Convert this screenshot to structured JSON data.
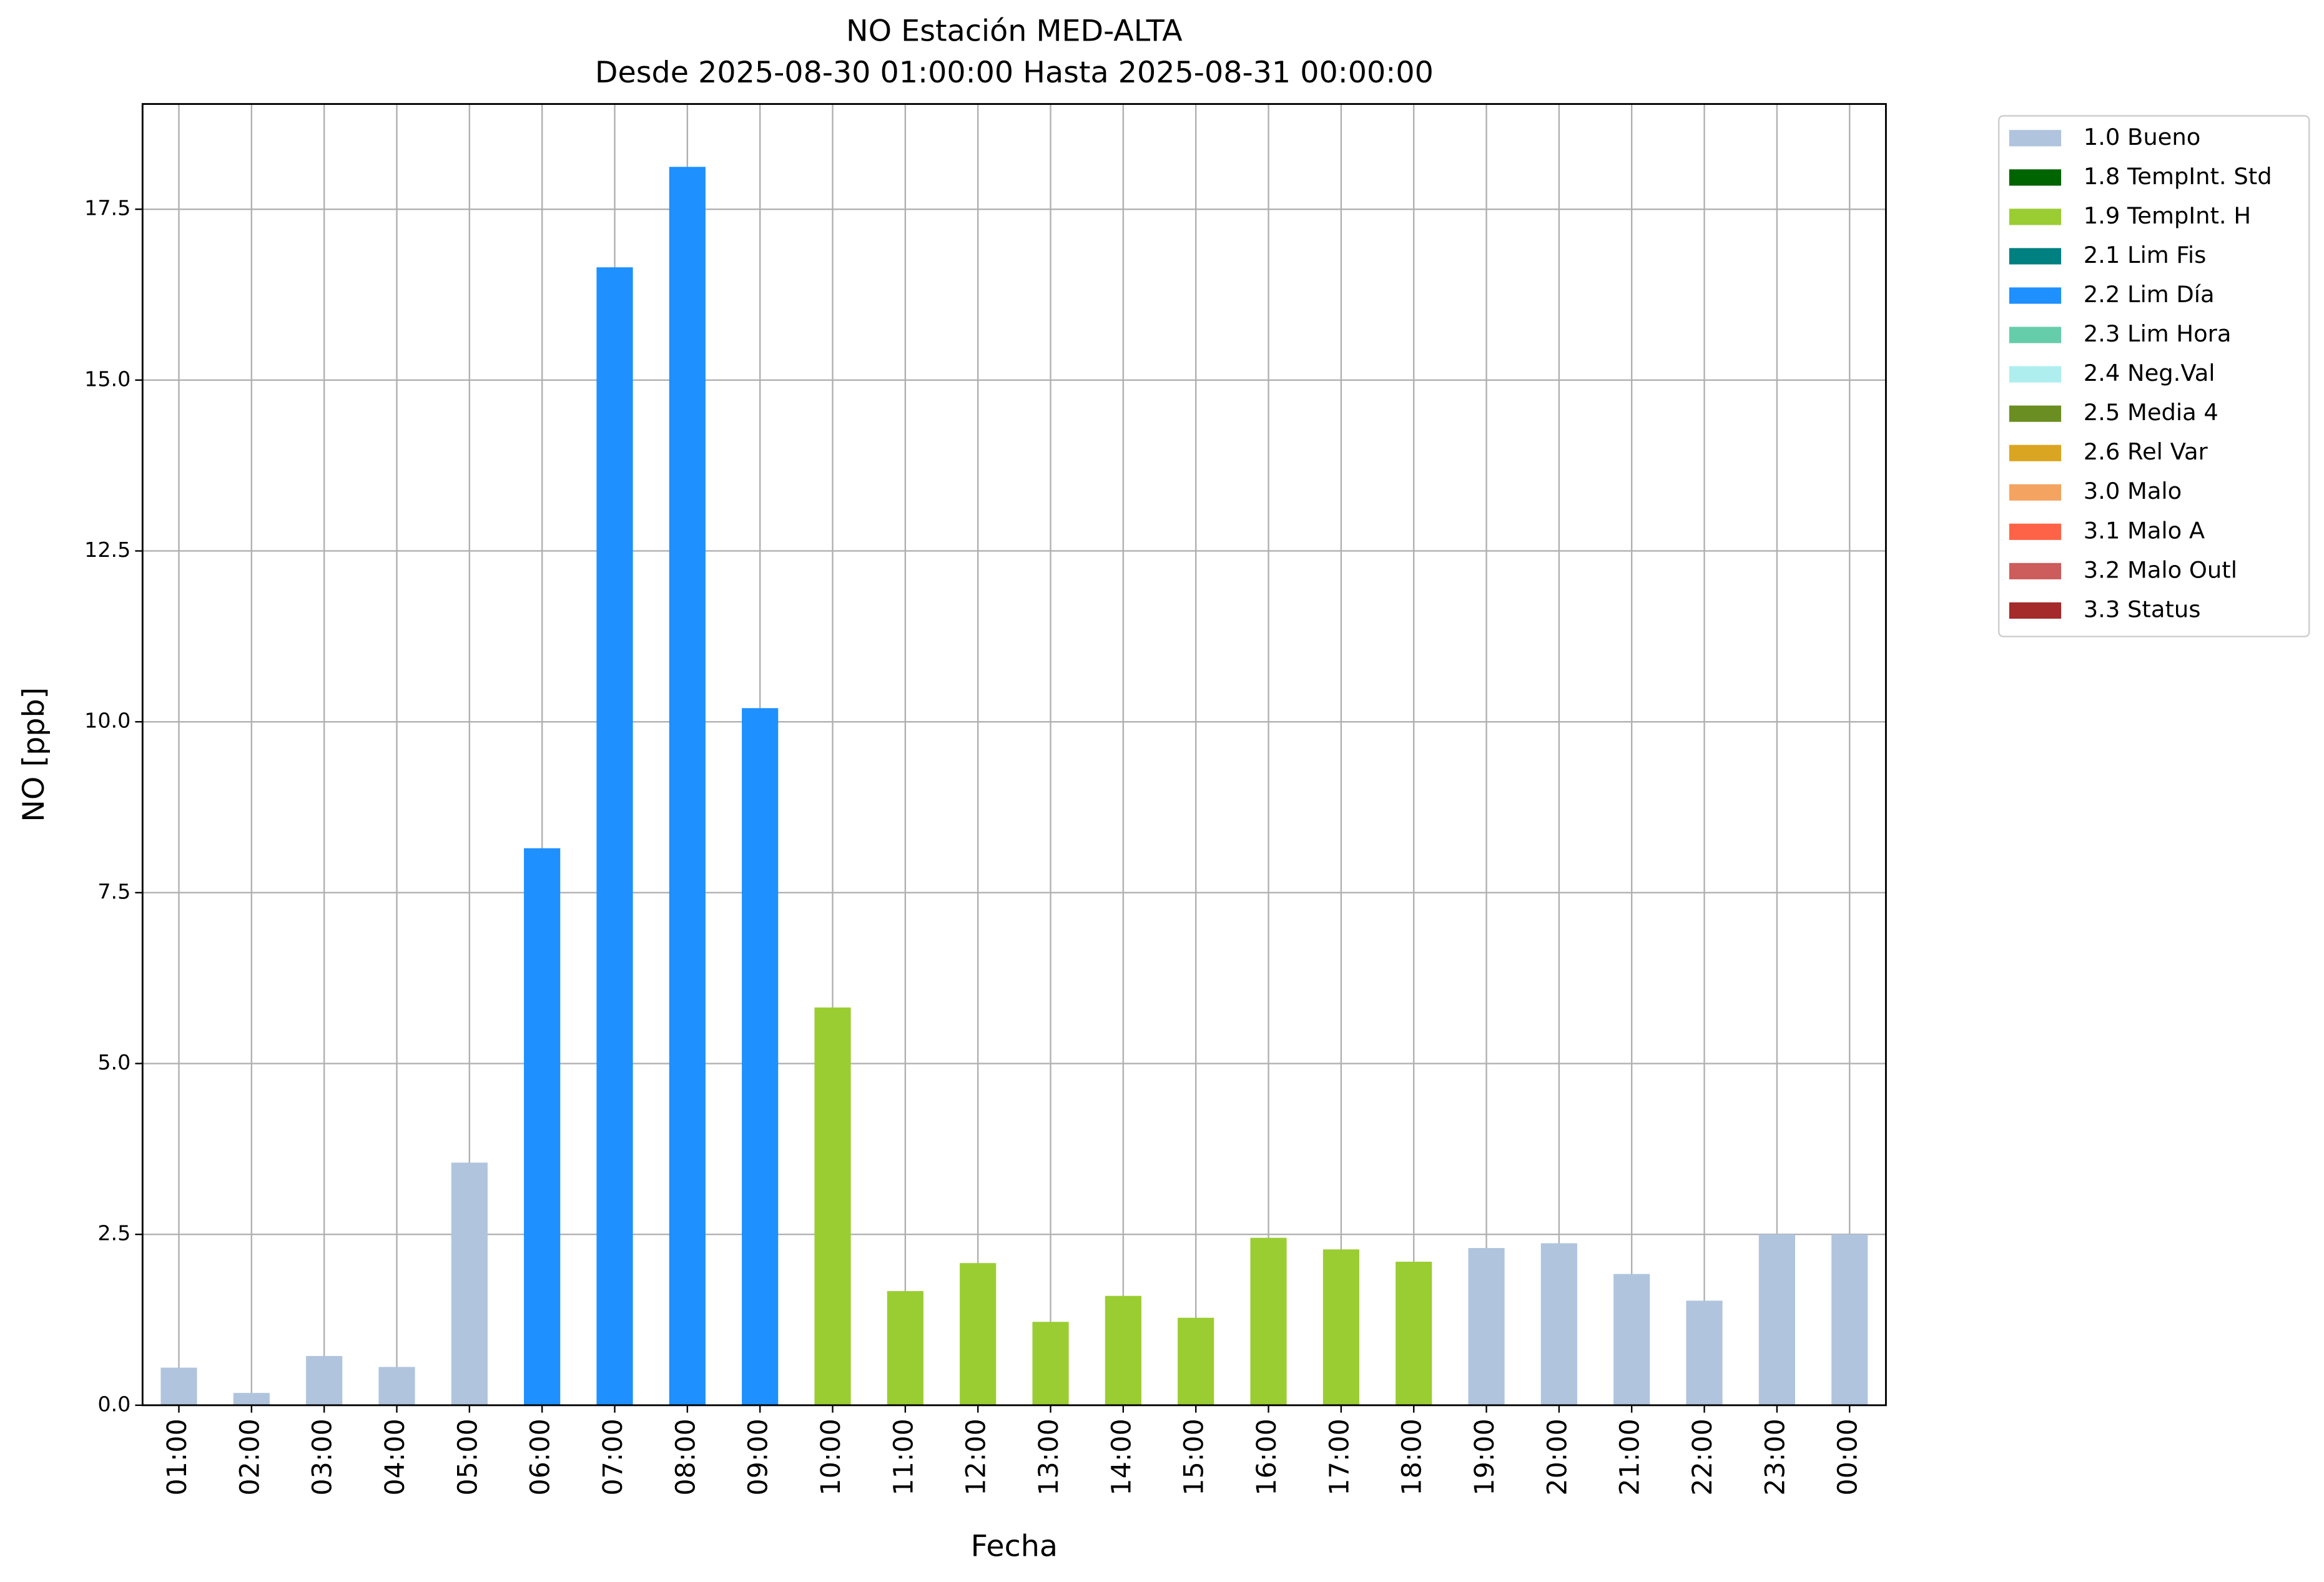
{
  "chart_data": {
    "type": "bar",
    "stacked": true,
    "title": "NO Estación MED-ALTA",
    "subtitle": "Desde 2025-08-30 01:00:00 Hasta 2025-08-31 00:00:00",
    "x_label": "Fecha",
    "y_label": "NO [ppb]",
    "categories": [
      "01:00",
      "02:00",
      "03:00",
      "04:00",
      "05:00",
      "06:00",
      "07:00",
      "08:00",
      "09:00",
      "10:00",
      "11:00",
      "12:00",
      "13:00",
      "14:00",
      "15:00",
      "16:00",
      "17:00",
      "18:00",
      "19:00",
      "20:00",
      "21:00",
      "22:00",
      "23:00",
      "00:00"
    ],
    "series": [
      {
        "name": "1.0 Bueno",
        "color": "#b0c4de",
        "values": [
          0.55,
          0.18,
          0.72,
          0.56,
          3.55,
          null,
          null,
          null,
          null,
          null,
          null,
          null,
          null,
          null,
          null,
          null,
          null,
          null,
          2.3,
          2.37,
          1.92,
          1.53,
          2.5,
          2.5
        ]
      },
      {
        "name": "1.8 TempInt. Std",
        "color": "#006400",
        "values": [
          null,
          null,
          null,
          null,
          null,
          null,
          null,
          null,
          null,
          null,
          null,
          null,
          null,
          null,
          null,
          null,
          null,
          null,
          null,
          null,
          null,
          null,
          null,
          null
        ]
      },
      {
        "name": "1.9 TempInt. H",
        "color": "#9acd32",
        "values": [
          null,
          null,
          null,
          null,
          null,
          null,
          null,
          null,
          null,
          5.82,
          1.67,
          2.08,
          1.22,
          1.6,
          1.28,
          2.45,
          2.28,
          2.1,
          null,
          null,
          null,
          null,
          null,
          null
        ]
      },
      {
        "name": "2.1 Lim Fis",
        "color": "#008080",
        "values": [
          null,
          null,
          null,
          null,
          null,
          null,
          null,
          null,
          null,
          null,
          null,
          null,
          null,
          null,
          null,
          null,
          null,
          null,
          null,
          null,
          null,
          null,
          null,
          null
        ]
      },
      {
        "name": "2.2 Lim Día",
        "color": "#1e90ff",
        "values": [
          null,
          null,
          null,
          null,
          null,
          8.15,
          16.65,
          18.12,
          10.2,
          null,
          null,
          null,
          null,
          null,
          null,
          null,
          null,
          null,
          null,
          null,
          null,
          null,
          null,
          null
        ]
      },
      {
        "name": "2.3 Lim Hora",
        "color": "#66cdaa",
        "values": [
          null,
          null,
          null,
          null,
          null,
          null,
          null,
          null,
          null,
          null,
          null,
          null,
          null,
          null,
          null,
          null,
          null,
          null,
          null,
          null,
          null,
          null,
          null,
          null
        ]
      },
      {
        "name": "2.4 Neg.Val",
        "color": "#afeeee",
        "values": [
          null,
          null,
          null,
          null,
          null,
          null,
          null,
          null,
          null,
          null,
          null,
          null,
          null,
          null,
          null,
          null,
          null,
          null,
          null,
          null,
          null,
          null,
          null,
          null
        ]
      },
      {
        "name": "2.5 Media 4",
        "color": "#6b8e23",
        "values": [
          null,
          null,
          null,
          null,
          null,
          null,
          null,
          null,
          null,
          null,
          null,
          null,
          null,
          null,
          null,
          null,
          null,
          null,
          null,
          null,
          null,
          null,
          null,
          null
        ]
      },
      {
        "name": "2.6 Rel Var",
        "color": "#daa520",
        "values": [
          null,
          null,
          null,
          null,
          null,
          null,
          null,
          null,
          null,
          null,
          null,
          null,
          null,
          null,
          null,
          null,
          null,
          null,
          null,
          null,
          null,
          null,
          null,
          null
        ]
      },
      {
        "name": "3.0 Malo",
        "color": "#f4a460",
        "values": [
          null,
          null,
          null,
          null,
          null,
          null,
          null,
          null,
          null,
          null,
          null,
          null,
          null,
          null,
          null,
          null,
          null,
          null,
          null,
          null,
          null,
          null,
          null,
          null
        ]
      },
      {
        "name": "3.1 Malo A",
        "color": "#ff6347",
        "values": [
          null,
          null,
          null,
          null,
          null,
          null,
          null,
          null,
          null,
          null,
          null,
          null,
          null,
          null,
          null,
          null,
          null,
          null,
          null,
          null,
          null,
          null,
          null,
          null
        ]
      },
      {
        "name": "3.2 Malo Outl",
        "color": "#cd5c5c",
        "values": [
          null,
          null,
          null,
          null,
          null,
          null,
          null,
          null,
          null,
          null,
          null,
          null,
          null,
          null,
          null,
          null,
          null,
          null,
          null,
          null,
          null,
          null,
          null,
          null
        ]
      },
      {
        "name": "3.3 Status",
        "color": "#a52a2a",
        "values": [
          null,
          null,
          null,
          null,
          null,
          null,
          null,
          null,
          null,
          null,
          null,
          null,
          null,
          null,
          null,
          null,
          null,
          null,
          null,
          null,
          null,
          null,
          null,
          null
        ]
      }
    ],
    "ylim": [
      0,
      19.04
    ],
    "yticks": [
      {
        "value": 0,
        "label": "0.0"
      },
      2.5,
      {
        "value": 5,
        "label": "5.0"
      },
      7.5,
      {
        "value": 10,
        "label": "10.0"
      },
      12.5,
      {
        "value": 15,
        "label": "15.0"
      },
      17.5
    ],
    "grid": true,
    "legend": "outside upper right"
  }
}
